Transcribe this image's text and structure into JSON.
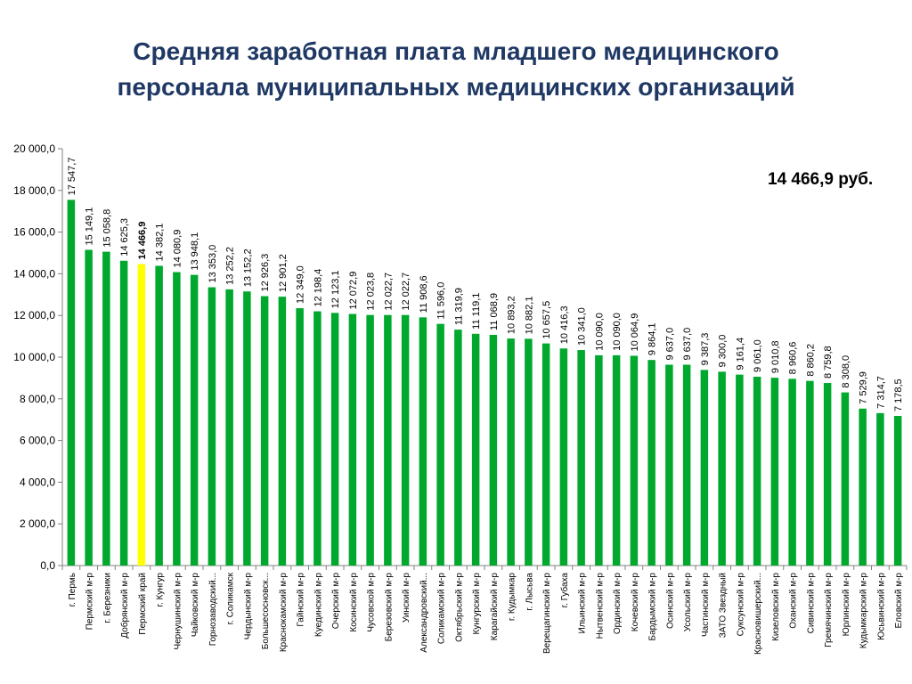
{
  "title_lines": [
    "Средняя заработная плата младшего медицинского",
    "персонала муниципальных медицинских организаций"
  ],
  "callout": "14 466,9 руб.",
  "colors": {
    "title": "#1f3864",
    "bar": "#00a82d",
    "highlight_bar": "#ffff00",
    "axis": "#808080",
    "text": "#000000"
  },
  "chart_data": {
    "type": "bar",
    "title": "",
    "xlabel": "",
    "ylabel": "",
    "ylim": [
      0,
      20000
    ],
    "y_ticks": [
      0,
      2000,
      4000,
      6000,
      8000,
      10000,
      12000,
      14000,
      16000,
      18000,
      20000
    ],
    "y_tick_labels": [
      "0,0",
      "2 000,0",
      "4 000,0",
      "6 000,0",
      "8 000,0",
      "10 000,0",
      "12 000,0",
      "14 000,0",
      "16 000,0",
      "18 000,0",
      "20 000,0"
    ],
    "grid": false,
    "highlight_index": 4,
    "categories": [
      "г. Пермь",
      "Пермский м-р",
      "г. Березники",
      "Добрянский м-р",
      "Пермский край",
      "г. Кунгур",
      "Чернушинский м-р",
      "Чайковский м-р",
      "Горнозаводский...",
      "г. Соликамск",
      "Чердынский м-р",
      "Большесосновск...",
      "Краснокамский м-р",
      "Гайнский м-р",
      "Куединский м-р",
      "Очерский м-р",
      "Косинский м-р",
      "Чусовской м-р",
      "Березовский м-р",
      "Уинский м-р",
      "Александровский...",
      "Соликамский м-р",
      "Октябрьский м-р",
      "Кунгурский м-р",
      "Карагайский м-р",
      "г. Кудымкар",
      "г. Лысьва",
      "Верещагинский м-р",
      "г. Губаха",
      "Ильинский м-р",
      "Нытвенский м-р",
      "Ординский м-р",
      "Кочевский м-р",
      "Бардымский м-р",
      "Осинский м-р",
      "Усольский м-р",
      "Частинский м-р",
      "ЗАТО Звездный",
      "Суксунский м-р",
      "Красновишерский...",
      "Кизеловский м-р",
      "Оханский м-р",
      "Сивинский м-р",
      "Гремячинский м-р",
      "Юрлинский м-р",
      "Кудымкарский м-р",
      "Юсьвинский м-р",
      "Еловский м-р"
    ],
    "values": [
      17547.7,
      15149.1,
      15058.8,
      14625.3,
      14466.9,
      14382.1,
      14080.9,
      13948.1,
      13353.0,
      13252.2,
      13152.2,
      12926.3,
      12901.2,
      12349.0,
      12198.4,
      12123.1,
      12072.9,
      12023.8,
      12022.7,
      12022.7,
      11908.6,
      11596.0,
      11319.9,
      11119.1,
      11068.9,
      10893.2,
      10882.1,
      10657.5,
      10416.3,
      10341.0,
      10090.0,
      10090.0,
      10064.9,
      9864.1,
      9637.0,
      9637.0,
      9387.3,
      9300.0,
      9161.4,
      9061.0,
      9010.8,
      8960.6,
      8860.2,
      8759.8,
      8308.0,
      7529.9,
      7314.7,
      7178.5
    ],
    "value_labels": [
      "17 547,7",
      "15 149,1",
      "15 058,8",
      "14 625,3",
      "14 466,9",
      "14 382,1",
      "14 080,9",
      "13 948,1",
      "13 353,0",
      "13 252,2",
      "13 152,2",
      "12 926,3",
      "12 901,2",
      "12 349,0",
      "12 198,4",
      "12 123,1",
      "12 072,9",
      "12 023,8",
      "12 022,7",
      "12 022,7",
      "11 908,6",
      "11 596,0",
      "11 319,9",
      "11 119,1",
      "11 068,9",
      "10 893,2",
      "10 882,1",
      "10 657,5",
      "10 416,3",
      "10 341,0",
      "10 090,0",
      "10 090,0",
      "10 064,9",
      "9 864,1",
      "9 637,0",
      "9 637,0",
      "9 387,3",
      "9 300,0",
      "9 161,4",
      "9 061,0",
      "9 010,8",
      "8 960,6",
      "8 860,2",
      "8 759,8",
      "8 308,0",
      "7 529,9",
      "7 314,7",
      "7 178,5"
    ]
  }
}
